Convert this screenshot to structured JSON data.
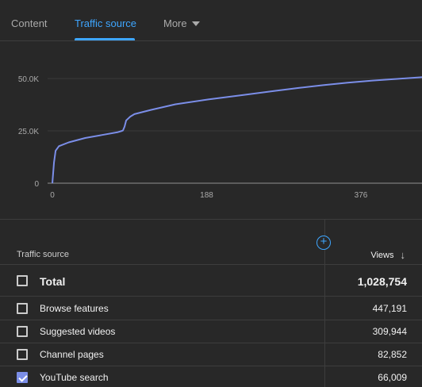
{
  "tabs": [
    {
      "label": "Content",
      "active": false
    },
    {
      "label": "Traffic source",
      "active": true
    },
    {
      "label": "More",
      "active": false
    }
  ],
  "chart_data": {
    "type": "line",
    "x_ticks": [
      "0",
      "188",
      "376"
    ],
    "y_ticks": [
      "0",
      "25.0K",
      "50.0K"
    ],
    "ylim": [
      0,
      50000
    ],
    "line_color": "#7b8ee8",
    "grid": true,
    "series": [
      {
        "x": [
          0,
          2,
          4,
          8,
          20,
          40,
          60,
          80,
          85,
          86,
          88,
          90,
          95,
          100,
          120,
          150,
          190,
          230,
          270,
          300,
          330,
          360,
          390,
          420,
          450,
          480
        ],
        "values": [
          0,
          10000,
          15500,
          17700,
          19500,
          21600,
          23000,
          24400,
          25000,
          25200,
          27000,
          30000,
          31800,
          33000,
          35000,
          37700,
          40000,
          42000,
          44000,
          45500,
          46800,
          48000,
          49000,
          49800,
          50600,
          51200
        ]
      }
    ]
  },
  "table": {
    "add_button": "+",
    "header_source": "Traffic source",
    "header_views": "Views",
    "sort_arrow": "↓",
    "total": {
      "label": "Total",
      "value": "1,028,754"
    },
    "rows": [
      {
        "label": "Browse features",
        "value": "447,191",
        "checked": false
      },
      {
        "label": "Suggested videos",
        "value": "309,944",
        "checked": false
      },
      {
        "label": "Channel pages",
        "value": "82,852",
        "checked": false
      },
      {
        "label": "YouTube search",
        "value": "66,009",
        "checked": true
      }
    ]
  }
}
